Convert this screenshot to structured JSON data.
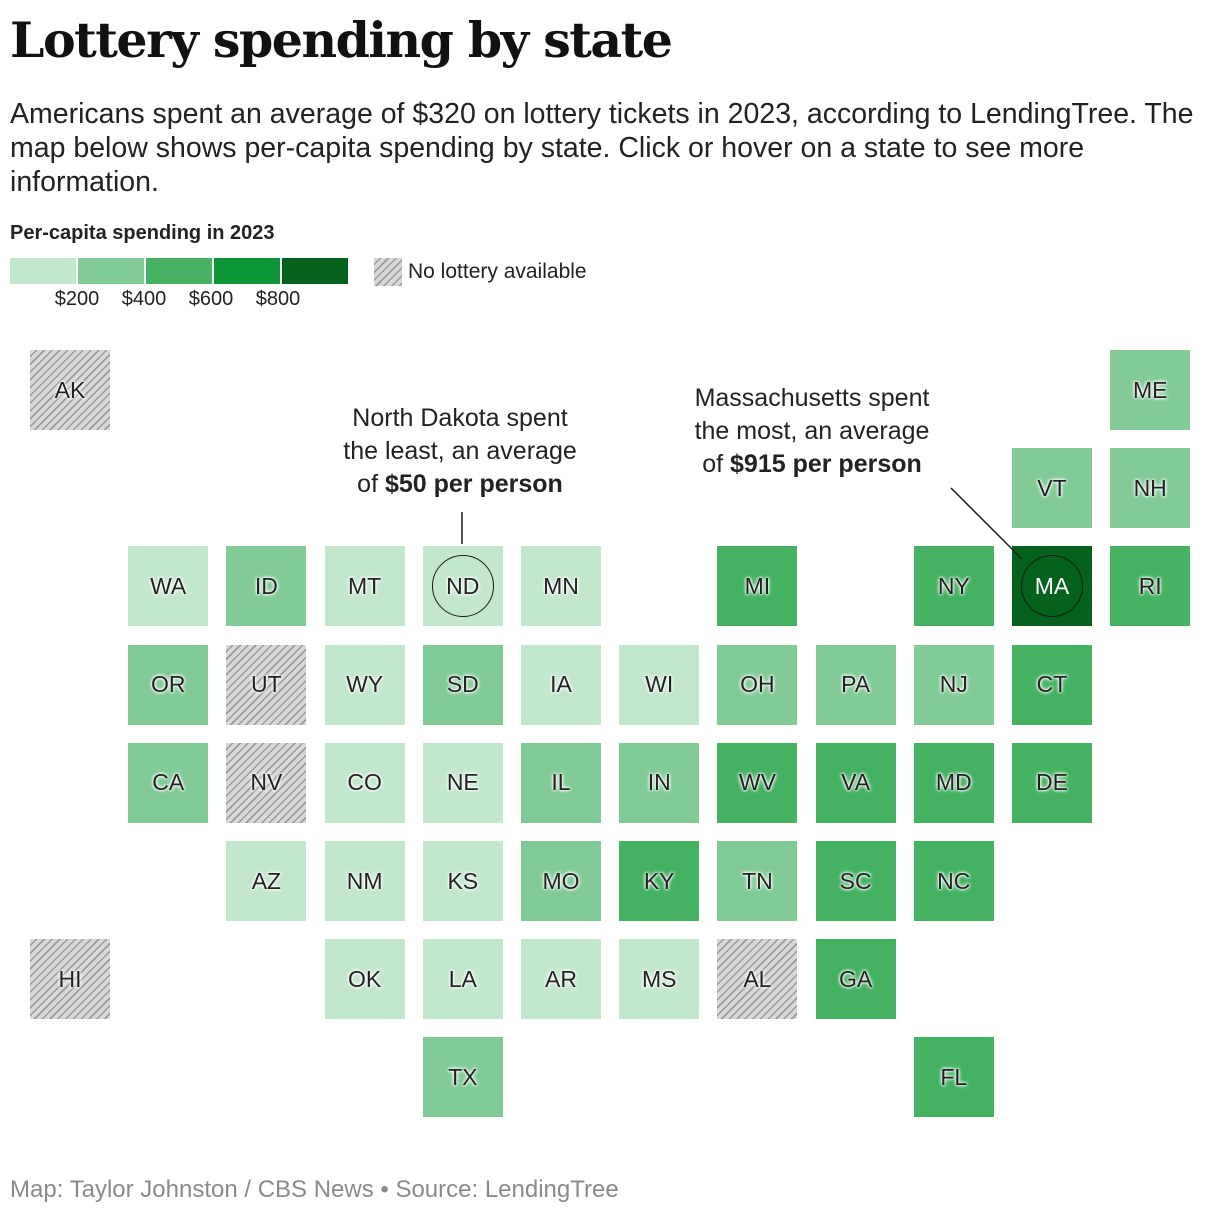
{
  "header": {
    "title": "Lottery spending by state",
    "subtitle": "Americans spent an average of $320 on lottery tickets in 2023, according to LendingTree. The map below shows per-capita spending by state. Click or hover on a state to see more information."
  },
  "legend": {
    "title": "Per-capita spending in 2023",
    "bins": [
      {
        "color": "#c2e7cd"
      },
      {
        "color": "#82cb97"
      },
      {
        "color": "#45b262"
      },
      {
        "color": "#0c9638"
      },
      {
        "color": "#05621c"
      }
    ],
    "ticks": [
      "$200",
      "$400",
      "$600",
      "$800"
    ],
    "no_lottery_label": "No lottery available"
  },
  "colors": {
    "bin1": "#c2e7cd",
    "bin2": "#82cb97",
    "bin3": "#45b262",
    "bin4": "#0c9638",
    "bin5": "#05621c"
  },
  "states": [
    {
      "abbr": "AK",
      "col": 0,
      "row": 0,
      "bin": 0
    },
    {
      "abbr": "ME",
      "col": 11,
      "row": 0,
      "bin": 2
    },
    {
      "abbr": "VT",
      "col": 10,
      "row": 1,
      "bin": 2
    },
    {
      "abbr": "NH",
      "col": 11,
      "row": 1,
      "bin": 2
    },
    {
      "abbr": "WA",
      "col": 1,
      "row": 2,
      "bin": 1
    },
    {
      "abbr": "ID",
      "col": 2,
      "row": 2,
      "bin": 2
    },
    {
      "abbr": "MT",
      "col": 3,
      "row": 2,
      "bin": 1
    },
    {
      "abbr": "ND",
      "col": 4,
      "row": 2,
      "bin": 1,
      "ring": true
    },
    {
      "abbr": "MN",
      "col": 5,
      "row": 2,
      "bin": 1
    },
    {
      "abbr": "MI",
      "col": 7,
      "row": 2,
      "bin": 3
    },
    {
      "abbr": "NY",
      "col": 9,
      "row": 2,
      "bin": 3
    },
    {
      "abbr": "MA",
      "col": 10,
      "row": 2,
      "bin": 5,
      "ring": true
    },
    {
      "abbr": "RI",
      "col": 11,
      "row": 2,
      "bin": 3
    },
    {
      "abbr": "OR",
      "col": 1,
      "row": 3,
      "bin": 2
    },
    {
      "abbr": "UT",
      "col": 2,
      "row": 3,
      "bin": 0
    },
    {
      "abbr": "WY",
      "col": 3,
      "row": 3,
      "bin": 1
    },
    {
      "abbr": "SD",
      "col": 4,
      "row": 3,
      "bin": 2
    },
    {
      "abbr": "IA",
      "col": 5,
      "row": 3,
      "bin": 1
    },
    {
      "abbr": "WI",
      "col": 6,
      "row": 3,
      "bin": 1
    },
    {
      "abbr": "OH",
      "col": 7,
      "row": 3,
      "bin": 2
    },
    {
      "abbr": "PA",
      "col": 8,
      "row": 3,
      "bin": 2
    },
    {
      "abbr": "NJ",
      "col": 9,
      "row": 3,
      "bin": 2
    },
    {
      "abbr": "CT",
      "col": 10,
      "row": 3,
      "bin": 3
    },
    {
      "abbr": "CA",
      "col": 1,
      "row": 4,
      "bin": 2
    },
    {
      "abbr": "NV",
      "col": 2,
      "row": 4,
      "bin": 0
    },
    {
      "abbr": "CO",
      "col": 3,
      "row": 4,
      "bin": 1
    },
    {
      "abbr": "NE",
      "col": 4,
      "row": 4,
      "bin": 1
    },
    {
      "abbr": "IL",
      "col": 5,
      "row": 4,
      "bin": 2
    },
    {
      "abbr": "IN",
      "col": 6,
      "row": 4,
      "bin": 2
    },
    {
      "abbr": "WV",
      "col": 7,
      "row": 4,
      "bin": 3
    },
    {
      "abbr": "VA",
      "col": 8,
      "row": 4,
      "bin": 3
    },
    {
      "abbr": "MD",
      "col": 9,
      "row": 4,
      "bin": 3
    },
    {
      "abbr": "DE",
      "col": 10,
      "row": 4,
      "bin": 3
    },
    {
      "abbr": "AZ",
      "col": 2,
      "row": 5,
      "bin": 1
    },
    {
      "abbr": "NM",
      "col": 3,
      "row": 5,
      "bin": 1
    },
    {
      "abbr": "KS",
      "col": 4,
      "row": 5,
      "bin": 1
    },
    {
      "abbr": "MO",
      "col": 5,
      "row": 5,
      "bin": 2
    },
    {
      "abbr": "KY",
      "col": 6,
      "row": 5,
      "bin": 3
    },
    {
      "abbr": "TN",
      "col": 7,
      "row": 5,
      "bin": 2
    },
    {
      "abbr": "SC",
      "col": 8,
      "row": 5,
      "bin": 3
    },
    {
      "abbr": "NC",
      "col": 9,
      "row": 5,
      "bin": 3
    },
    {
      "abbr": "HI",
      "col": 0,
      "row": 6,
      "bin": 0
    },
    {
      "abbr": "OK",
      "col": 3,
      "row": 6,
      "bin": 1
    },
    {
      "abbr": "LA",
      "col": 4,
      "row": 6,
      "bin": 1
    },
    {
      "abbr": "AR",
      "col": 5,
      "row": 6,
      "bin": 1
    },
    {
      "abbr": "MS",
      "col": 6,
      "row": 6,
      "bin": 1
    },
    {
      "abbr": "AL",
      "col": 7,
      "row": 6,
      "bin": 0
    },
    {
      "abbr": "GA",
      "col": 8,
      "row": 6,
      "bin": 3
    },
    {
      "abbr": "TX",
      "col": 4,
      "row": 7,
      "bin": 2
    },
    {
      "abbr": "FL",
      "col": 9,
      "row": 7,
      "bin": 3
    }
  ],
  "annotations": {
    "nd": {
      "line1": "North Dakota spent",
      "line2": "the least, an average",
      "prefix": "of ",
      "bold": "$50 per person"
    },
    "ma": {
      "line1": "Massachusetts spent",
      "line2": "the most, an average",
      "prefix": "of ",
      "bold": "$915 per person"
    }
  },
  "footer": {
    "source": "Map: Taylor Johnston / CBS News • Source: LendingTree"
  }
}
